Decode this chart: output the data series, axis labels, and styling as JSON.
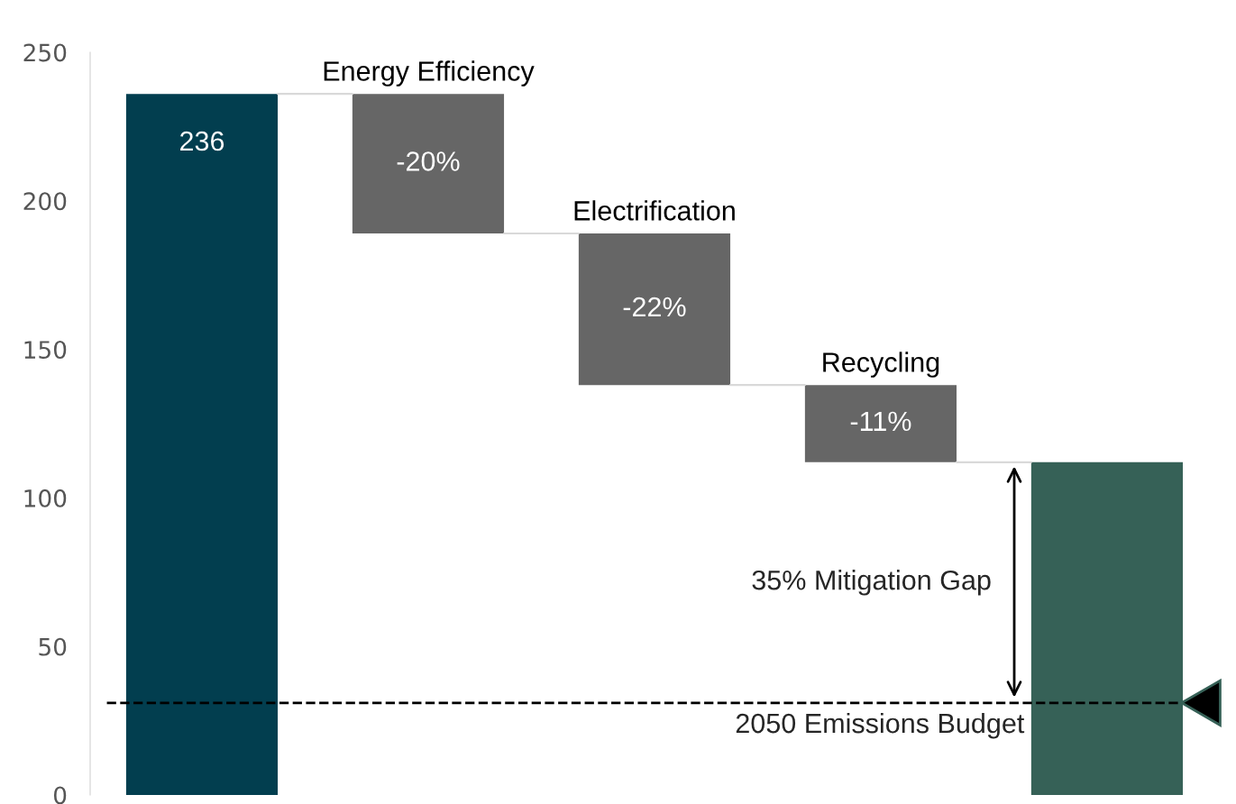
{
  "chart_data": {
    "type": "bar",
    "categories": [
      null,
      "Energy Efficiency",
      "Electrification",
      "Recycling",
      null
    ],
    "values": [
      236,
      47,
      51,
      26,
      112
    ],
    "base": [
      0,
      189,
      138,
      112,
      0
    ],
    "colors": [
      "#023e4f",
      "#666666",
      "#666666",
      "#666666",
      "#366157"
    ],
    "value_labels": [
      "236",
      null,
      null,
      null,
      null
    ],
    "ylim": [
      0,
      250
    ],
    "yticks": [
      0,
      50,
      100,
      150,
      200,
      250
    ],
    "grid": false,
    "ref_lines": [
      {
        "axis": "y",
        "value": 31,
        "label": "2050 Emissions Budget",
        "color": "#000000",
        "line_style": "dashed"
      }
    ],
    "annotations": [
      "-20%",
      "-22%",
      "-11%",
      "35% Mitigation Gap"
    ]
  }
}
